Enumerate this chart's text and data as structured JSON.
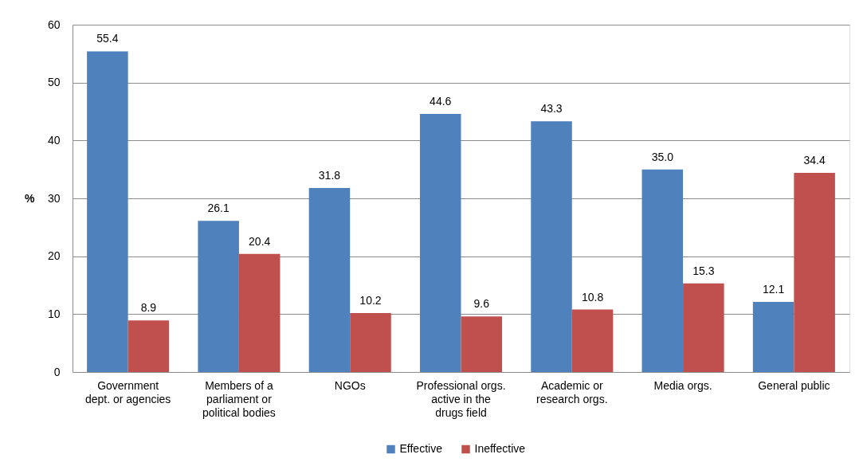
{
  "chart_data": {
    "type": "bar",
    "ylabel": "%",
    "categories": [
      "Government\ndept. or agencies",
      "Members of a\nparliament or\npolitical bodies",
      "NGOs",
      "Professional orgs.\nactive in the\ndrugs field",
      "Academic or\nresearch orgs.",
      "Media orgs.",
      "General public"
    ],
    "series": [
      {
        "name": "Effective",
        "color": "#4f81bd",
        "values": [
          55.4,
          26.1,
          31.8,
          44.6,
          43.3,
          35.0,
          12.1
        ],
        "value_labels": [
          "55.4",
          "26.1",
          "31.8",
          "44.6",
          "43.3",
          "35.0",
          "12.1"
        ]
      },
      {
        "name": "Ineffective",
        "color": "#c0504d",
        "values": [
          8.9,
          20.4,
          10.2,
          9.6,
          10.8,
          15.3,
          34.4
        ],
        "value_labels": [
          "8.9",
          "20.4",
          "10.2",
          "9.6",
          "10.8",
          "15.3",
          "34.4"
        ]
      }
    ],
    "ylim": [
      0,
      60
    ],
    "yticks": [
      0,
      10,
      20,
      30,
      40,
      50,
      60
    ],
    "grid": "y",
    "legend": "bottom"
  }
}
